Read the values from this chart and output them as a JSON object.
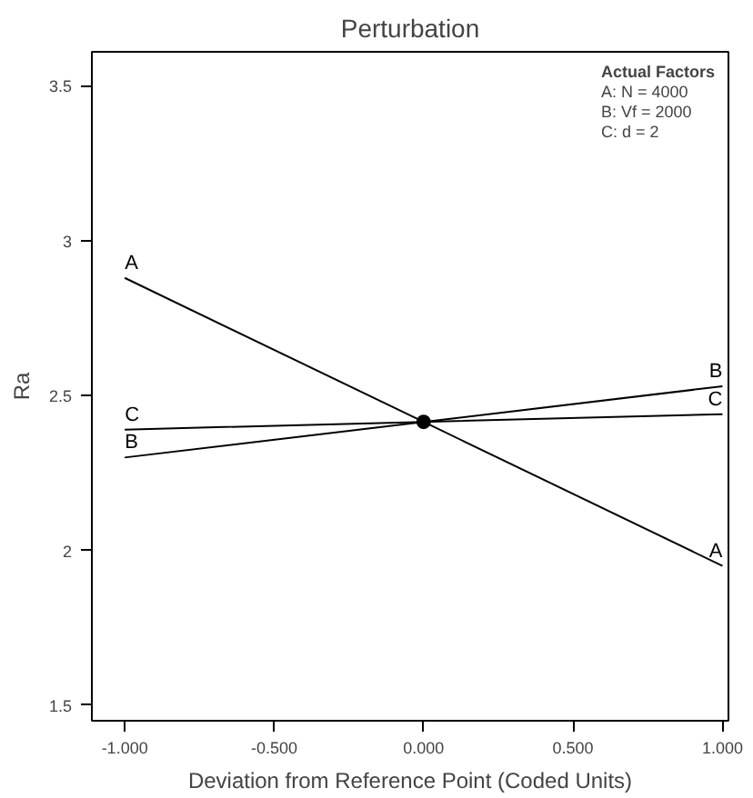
{
  "chart_data": {
    "type": "line",
    "title": "Perturbation",
    "xlabel": "Deviation from Reference Point (Coded Units)",
    "ylabel": "Ra",
    "x": [
      -1,
      0,
      1
    ],
    "series": [
      {
        "name": "A",
        "color": "#000000",
        "values": [
          2.88,
          2.415,
          1.95
        ]
      },
      {
        "name": "B",
        "color": "#000000",
        "values": [
          2.3,
          2.415,
          2.53
        ]
      },
      {
        "name": "C",
        "color": "#000000",
        "values": [
          2.39,
          2.415,
          2.44
        ]
      },
      {
        "type": "scatter",
        "marker": "circle",
        "color": "#000000",
        "x": [
          0
        ],
        "values": [
          2.415
        ]
      }
    ],
    "xlim": [
      -1.11,
      1.02
    ],
    "ylim": [
      1.45,
      3.61
    ],
    "xticks": [
      {
        "value": -1,
        "label": "-1.000"
      },
      {
        "value": -0.5,
        "label": "-0.500"
      },
      {
        "value": 0,
        "label": "0.000"
      },
      {
        "value": 0.5,
        "label": "0.500"
      },
      {
        "value": 1,
        "label": "1.000"
      }
    ],
    "yticks": [
      1.5,
      2,
      2.5,
      3,
      3.5
    ],
    "annotations": [
      "Actual Factors",
      "A: N = 4000",
      "B: Vf = 2000",
      "C: d = 2"
    ],
    "grid": false,
    "marker": "none",
    "line_style": "solid"
  }
}
